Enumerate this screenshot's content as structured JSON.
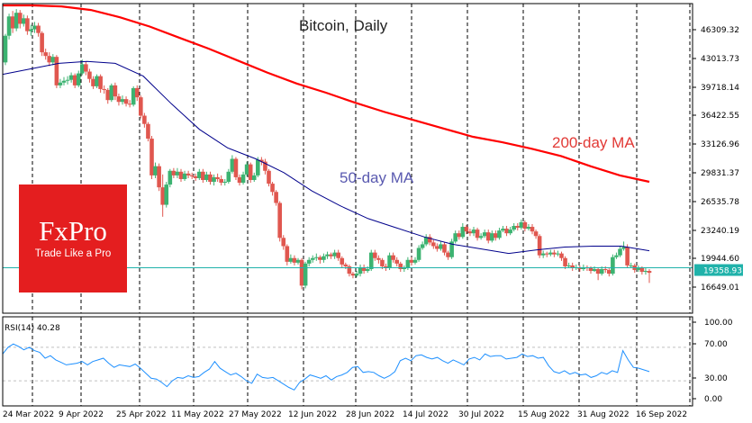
{
  "chart_data": {
    "type": "candlestick",
    "title": "Bitcoin, Daily",
    "price_axis": {
      "ticks": [
        "46309.32",
        "43013.73",
        "39718.14",
        "36422.55",
        "33126.96",
        "29831.37",
        "26535.78",
        "23240.19",
        "19944.60",
        "16649.01"
      ],
      "range": [
        15000,
        48700
      ]
    },
    "x_ticks": [
      "24 Mar 2022",
      "9 Apr 2022",
      "25 Apr 2022",
      "11 May 2022",
      "27 May 2022",
      "12 Jun 2022",
      "28 Jun 2022",
      "14 Jul 2022",
      "30 Jul 2022",
      "15 Aug 2022",
      "31 Aug 2022",
      "16 Sep 2022"
    ],
    "current_price": "19358.93",
    "price_line": 19945,
    "annotations": {
      "ma200": "200-day MA",
      "ma50": "50-day MA"
    },
    "ma200": [
      48500,
      48500,
      48400,
      48000,
      47200,
      46200,
      45000,
      43800,
      42500,
      41200,
      40000,
      39000,
      37900,
      36900,
      36000,
      35100,
      34200,
      33600,
      32900,
      32100,
      31000,
      30000,
      29300
    ],
    "ma50": [
      41000,
      41600,
      42200,
      42400,
      42200,
      40800,
      37800,
      35000,
      33000,
      31800,
      30300,
      28300,
      26700,
      25300,
      24300,
      23300,
      22500,
      22000,
      21500,
      21900,
      22200,
      22300,
      22300,
      21800
    ],
    "candles": [
      [
        42300,
        45200,
        42000,
        45400
      ],
      [
        45200,
        47300,
        44800,
        47600
      ],
      [
        47300,
        46000,
        45500,
        47900
      ],
      [
        46000,
        47700,
        45700,
        48100
      ],
      [
        47700,
        46500,
        46000,
        48000
      ],
      [
        46500,
        47100,
        46200,
        47500
      ],
      [
        47100,
        45700,
        45300,
        47400
      ],
      [
        45700,
        45900,
        45200,
        46400
      ],
      [
        45900,
        46300,
        45500,
        46700
      ],
      [
        46300,
        45500,
        45100,
        46600
      ],
      [
        45500,
        43400,
        43000,
        45700
      ],
      [
        43400,
        43000,
        42600,
        43800
      ],
      [
        43000,
        42300,
        41900,
        43400
      ],
      [
        42300,
        42900,
        42000,
        43200
      ],
      [
        42900,
        39800,
        39500,
        43100
      ],
      [
        39800,
        40100,
        39500,
        40500
      ],
      [
        40100,
        40300,
        39800,
        40700
      ],
      [
        40300,
        40400,
        39900,
        40800
      ],
      [
        40400,
        40900,
        40100,
        41200
      ],
      [
        40900,
        39800,
        39500,
        41100
      ],
      [
        39800,
        41100,
        39600,
        41400
      ],
      [
        41100,
        42100,
        40900,
        42600
      ],
      [
        42100,
        41300,
        40900,
        42400
      ],
      [
        41300,
        40500,
        40100,
        41600
      ],
      [
        40500,
        39700,
        39400,
        40800
      ],
      [
        39700,
        40800,
        39500,
        41000
      ],
      [
        40800,
        39400,
        39000,
        41000
      ],
      [
        39400,
        39300,
        38900,
        39800
      ],
      [
        39300,
        38200,
        37800,
        39500
      ],
      [
        38200,
        39800,
        38000,
        40000
      ],
      [
        39800,
        38600,
        38200,
        40100
      ],
      [
        38600,
        38000,
        37600,
        38900
      ],
      [
        38000,
        38300,
        37700,
        38700
      ],
      [
        38300,
        37800,
        37500,
        38600
      ],
      [
        37800,
        37700,
        37400,
        38200
      ],
      [
        37700,
        39500,
        37500,
        39700
      ],
      [
        39500,
        38500,
        38100,
        39800
      ],
      [
        38500,
        36500,
        36200,
        38700
      ],
      [
        36500,
        35600,
        35200,
        36800
      ],
      [
        35600,
        34000,
        33700,
        35800
      ],
      [
        34000,
        30000,
        29600,
        34300
      ],
      [
        30000,
        31000,
        29700,
        31400
      ],
      [
        31000,
        28700,
        28300,
        31300
      ],
      [
        28700,
        26800,
        25500,
        30100
      ],
      [
        26800,
        29000,
        26500,
        29300
      ],
      [
        29000,
        30500,
        28700,
        30700
      ],
      [
        30500,
        30000,
        29700,
        30800
      ],
      [
        30000,
        30400,
        29700,
        30800
      ],
      [
        30400,
        29600,
        29300,
        30700
      ],
      [
        29600,
        30200,
        29400,
        30500
      ],
      [
        30200,
        30000,
        29700,
        30500
      ],
      [
        30000,
        29900,
        29600,
        30300
      ],
      [
        29900,
        29700,
        29400,
        30200
      ],
      [
        29700,
        30400,
        29500,
        30700
      ],
      [
        30400,
        29500,
        29200,
        30700
      ],
      [
        29500,
        30100,
        29300,
        30400
      ],
      [
        30100,
        29300,
        29000,
        30400
      ],
      [
        29300,
        29800,
        28900,
        30100
      ],
      [
        29800,
        29600,
        29300,
        30200
      ],
      [
        29600,
        29200,
        28900,
        30000
      ],
      [
        29200,
        29300,
        28900,
        29600
      ],
      [
        29300,
        30400,
        29100,
        30700
      ],
      [
        30400,
        31800,
        30200,
        32200
      ],
      [
        31800,
        29800,
        29500,
        32000
      ],
      [
        29800,
        29200,
        28900,
        30100
      ],
      [
        29200,
        30100,
        29000,
        30400
      ],
      [
        30100,
        31200,
        29900,
        31500
      ],
      [
        31200,
        29500,
        29200,
        31400
      ],
      [
        29500,
        30000,
        29300,
        30300
      ],
      [
        30000,
        31700,
        29800,
        32000
      ],
      [
        31700,
        31500,
        31100,
        32000
      ],
      [
        31500,
        30500,
        30100,
        31800
      ],
      [
        30500,
        29100,
        28800,
        30700
      ],
      [
        29100,
        28200,
        27800,
        29300
      ],
      [
        28200,
        27000,
        26700,
        28400
      ],
      [
        27000,
        23200,
        22800,
        27200
      ],
      [
        23200,
        22300,
        21900,
        23500
      ],
      [
        22300,
        20600,
        20200,
        22500
      ],
      [
        20600,
        21000,
        20400,
        21400
      ],
      [
        21000,
        20500,
        20200,
        21300
      ],
      [
        20500,
        20800,
        20300,
        21000
      ],
      [
        20800,
        18000,
        17600,
        21000
      ],
      [
        18000,
        20400,
        17700,
        20600
      ],
      [
        20400,
        20800,
        20100,
        21100
      ],
      [
        20800,
        21000,
        20500,
        21300
      ],
      [
        21000,
        21100,
        20700,
        21500
      ],
      [
        21100,
        20800,
        20400,
        21300
      ],
      [
        20800,
        21200,
        20500,
        21500
      ],
      [
        21200,
        21400,
        20900,
        21700
      ],
      [
        21400,
        21200,
        20900,
        21600
      ],
      [
        21200,
        21600,
        20900,
        21900
      ],
      [
        21600,
        21000,
        20700,
        21900
      ],
      [
        21000,
        20300,
        20000,
        21200
      ],
      [
        20300,
        20100,
        19800,
        20500
      ],
      [
        20100,
        19300,
        19000,
        20300
      ],
      [
        19300,
        19100,
        18800,
        19500
      ],
      [
        19100,
        19300,
        18900,
        19600
      ],
      [
        19300,
        20000,
        19000,
        20300
      ],
      [
        20000,
        19600,
        19300,
        20300
      ],
      [
        19600,
        19800,
        19400,
        20100
      ],
      [
        19800,
        21600,
        19600,
        21900
      ],
      [
        21600,
        21000,
        20700,
        21900
      ],
      [
        21000,
        20800,
        20400,
        21300
      ],
      [
        20800,
        20100,
        19800,
        21000
      ],
      [
        20100,
        19900,
        19600,
        20400
      ],
      [
        19900,
        21300,
        19700,
        21600
      ],
      [
        21300,
        20800,
        20500,
        21600
      ],
      [
        20800,
        20400,
        20100,
        21100
      ],
      [
        20400,
        19800,
        19500,
        20600
      ],
      [
        19800,
        19900,
        19500,
        20200
      ],
      [
        19900,
        20800,
        19700,
        21100
      ],
      [
        20800,
        20500,
        20200,
        21100
      ],
      [
        20500,
        20800,
        20300,
        21100
      ],
      [
        20800,
        22100,
        20600,
        22400
      ],
      [
        22100,
        22500,
        21900,
        22800
      ],
      [
        22500,
        23300,
        22300,
        23600
      ],
      [
        23300,
        22700,
        22400,
        23600
      ],
      [
        22700,
        22300,
        22000,
        23000
      ],
      [
        22300,
        22000,
        21700,
        22600
      ],
      [
        22000,
        22500,
        21800,
        22800
      ],
      [
        22500,
        21600,
        21300,
        22700
      ],
      [
        21600,
        21100,
        20800,
        21800
      ],
      [
        21100,
        22800,
        20900,
        23100
      ],
      [
        22800,
        23700,
        22600,
        24000
      ],
      [
        23700,
        23300,
        23000,
        24000
      ],
      [
        23300,
        24400,
        23100,
        24800
      ],
      [
        24400,
        23900,
        23600,
        24600
      ],
      [
        23900,
        23700,
        23400,
        24200
      ],
      [
        23700,
        24100,
        23400,
        24400
      ],
      [
        24100,
        23200,
        22900,
        24300
      ],
      [
        23200,
        23400,
        23000,
        23700
      ],
      [
        23400,
        23800,
        23200,
        24100
      ],
      [
        23800,
        22900,
        22600,
        24100
      ],
      [
        22900,
        23700,
        22700,
        24000
      ],
      [
        23700,
        23200,
        22900,
        24000
      ],
      [
        23200,
        24000,
        23000,
        24300
      ],
      [
        24000,
        24200,
        23800,
        24500
      ],
      [
        24200,
        23700,
        23400,
        24500
      ],
      [
        23700,
        24100,
        23500,
        24400
      ],
      [
        24100,
        24500,
        23900,
        24800
      ],
      [
        24500,
        24300,
        24000,
        24800
      ],
      [
        24300,
        24900,
        24100,
        25200
      ],
      [
        24900,
        24200,
        23900,
        25100
      ],
      [
        24200,
        24400,
        24000,
        24700
      ],
      [
        24400,
        23900,
        23600,
        24700
      ],
      [
        23900,
        23400,
        23100,
        24100
      ],
      [
        23400,
        21300,
        21000,
        23600
      ],
      [
        21300,
        21500,
        21000,
        21800
      ],
      [
        21500,
        21400,
        21100,
        21700
      ],
      [
        21400,
        21600,
        21200,
        21900
      ],
      [
        21600,
        21400,
        21100,
        21900
      ],
      [
        21400,
        21500,
        21200,
        21800
      ],
      [
        21500,
        21000,
        20700,
        21700
      ],
      [
        21000,
        20100,
        19800,
        21200
      ],
      [
        20100,
        20200,
        19900,
        20500
      ],
      [
        20200,
        19900,
        19600,
        20500
      ],
      [
        19900,
        20000,
        19700,
        20300
      ],
      [
        20000,
        19800,
        19500,
        20200
      ],
      [
        19800,
        20000,
        19600,
        20300
      ],
      [
        20000,
        19900,
        19600,
        20200
      ],
      [
        19900,
        19600,
        19300,
        20100
      ],
      [
        19600,
        19800,
        19500,
        20100
      ],
      [
        19800,
        19300,
        18600,
        20000
      ],
      [
        19300,
        19800,
        19100,
        20100
      ],
      [
        19800,
        19700,
        19400,
        20100
      ],
      [
        19700,
        19300,
        19000,
        19900
      ],
      [
        19300,
        21100,
        19100,
        21400
      ],
      [
        21100,
        21300,
        20900,
        21600
      ],
      [
        21300,
        22000,
        21100,
        22300
      ],
      [
        22000,
        22200,
        21800,
        22800
      ],
      [
        22200,
        20200,
        19900,
        22500
      ],
      [
        20200,
        20200,
        19900,
        20500
      ],
      [
        20200,
        19700,
        19400,
        20400
      ],
      [
        19700,
        19900,
        19500,
        20200
      ],
      [
        19900,
        19500,
        19200,
        20100
      ],
      [
        19500,
        19600,
        19200,
        19900
      ],
      [
        19600,
        19400,
        18300,
        19800
      ]
    ],
    "rsi": {
      "label": "RSI(14) 40.28",
      "ticks": [
        "100.00",
        "70.00",
        "30.00",
        "0.00"
      ],
      "levels": [
        70,
        30
      ],
      "values": [
        62,
        70,
        74,
        71,
        67,
        70,
        66,
        64,
        57,
        60,
        55,
        52,
        49,
        50,
        51,
        53,
        49,
        53,
        55,
        57,
        51,
        46,
        49,
        48,
        47,
        50,
        45,
        39,
        33,
        32,
        28,
        23,
        30,
        34,
        33,
        36,
        34,
        35,
        40,
        44,
        53,
        45,
        41,
        37,
        39,
        35,
        30,
        27,
        38,
        34,
        33,
        34,
        30,
        26,
        22,
        19,
        28,
        32,
        37,
        35,
        33,
        36,
        31,
        35,
        37,
        40,
        46,
        47,
        40,
        41,
        40,
        36,
        33,
        36,
        41,
        54,
        57,
        54,
        60,
        61,
        58,
        56,
        58,
        54,
        51,
        55,
        52,
        49,
        56,
        58,
        55,
        62,
        59,
        60,
        60,
        56,
        57,
        58,
        62,
        59,
        60,
        57,
        58,
        48,
        41,
        39,
        42,
        38,
        40,
        37,
        38,
        34,
        36,
        40,
        38,
        42,
        40,
        66,
        55,
        46,
        45,
        43,
        41
      ]
    }
  }
}
